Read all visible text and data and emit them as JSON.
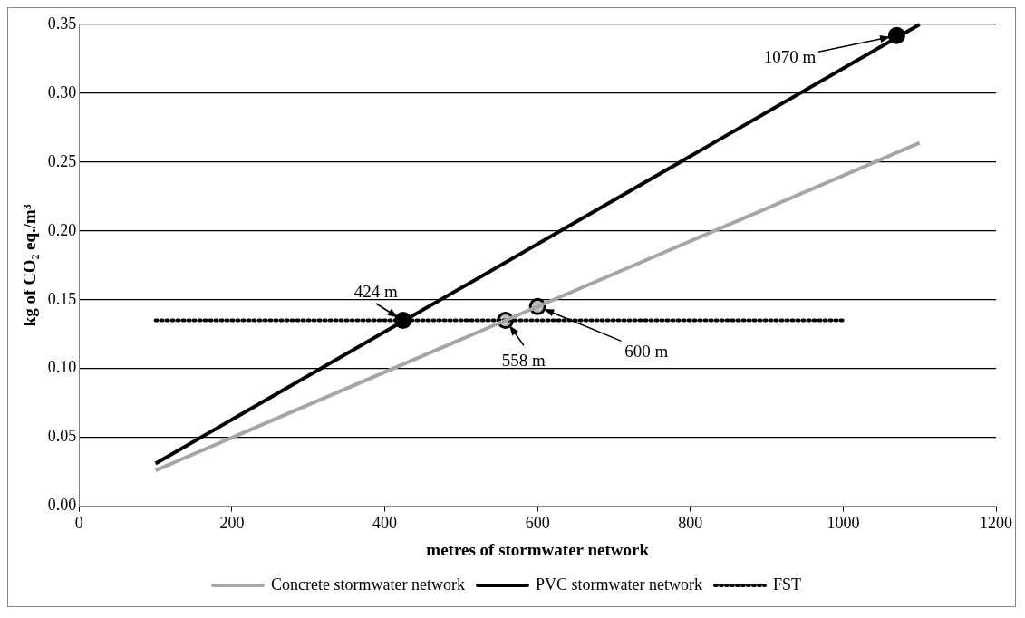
{
  "chart_data": {
    "type": "line",
    "xlabel": "metres of stormwater network",
    "ylabel": "kg of CO₂ eq./m³",
    "xlim": [
      0,
      1200
    ],
    "xticks": [
      0,
      200,
      400,
      600,
      800,
      1000,
      1200
    ],
    "ylim": [
      0,
      0.35
    ],
    "yticks": [
      {
        "value": 0,
        "label": "0.00"
      },
      {
        "value": 0.05,
        "label": "0.05"
      },
      {
        "value": 0.1,
        "label": "0.10"
      },
      {
        "value": 0.15,
        "label": "0.15"
      },
      {
        "value": 0.2,
        "label": "0.20"
      },
      {
        "value": 0.25,
        "label": "0.25"
      },
      {
        "value": 0.3,
        "label": "0.30"
      },
      {
        "value": 0.35,
        "label": "0.35"
      }
    ],
    "grid": "y",
    "legend": "bottom",
    "series": [
      {
        "name": "Concrete stormwater network",
        "color": "#a6a6a6",
        "x": [
          100,
          1100
        ],
        "values": [
          0.026,
          0.264
        ],
        "marker": "none",
        "line_style": "solid"
      },
      {
        "name": "PVC stormwater network",
        "color": "#000000",
        "x": [
          100,
          1100
        ],
        "values": [
          0.031,
          0.35
        ],
        "marker": "none",
        "line_style": "solid"
      },
      {
        "name": "FST",
        "color": "#000000",
        "x": [
          100,
          1000
        ],
        "values": [
          0.135,
          0.135
        ],
        "marker": "none",
        "line_style": "dotted"
      },
      {
        "type": "scatter",
        "color": "#000000",
        "x": [
          424,
          1070
        ],
        "values": [
          0.135,
          0.342
        ],
        "marker": "circle"
      },
      {
        "type": "scatter",
        "color": "#bfbfbf",
        "x": [
          558,
          600
        ],
        "values": [
          0.135,
          0.145
        ],
        "marker": "circle"
      }
    ],
    "annotations": [
      {
        "text": "1070 m",
        "x": 1070,
        "y": 0.342
      },
      {
        "text": "424 m",
        "x": 424,
        "y": 0.135
      },
      {
        "text": "558 m",
        "x": 558,
        "y": 0.135
      },
      {
        "text": "600 m",
        "x": 600,
        "y": 0.145
      }
    ]
  }
}
